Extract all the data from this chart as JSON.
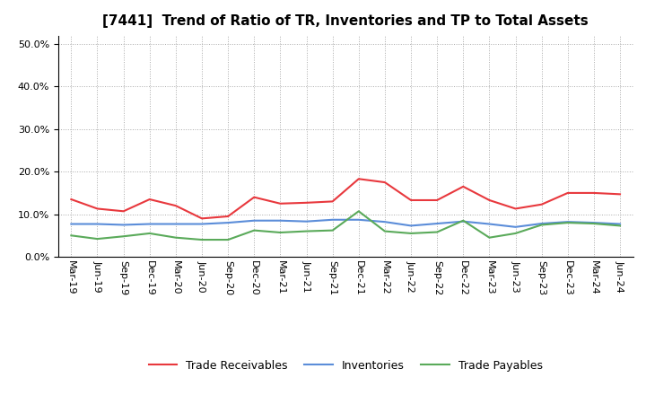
{
  "title": "[7441]  Trend of Ratio of TR, Inventories and TP to Total Assets",
  "x_labels": [
    "Mar-19",
    "Jun-19",
    "Sep-19",
    "Dec-19",
    "Mar-20",
    "Jun-20",
    "Sep-20",
    "Dec-20",
    "Mar-21",
    "Jun-21",
    "Sep-21",
    "Dec-21",
    "Mar-22",
    "Jun-22",
    "Sep-22",
    "Dec-22",
    "Mar-23",
    "Jun-23",
    "Sep-23",
    "Dec-23",
    "Mar-24",
    "Jun-24"
  ],
  "trade_receivables": [
    0.135,
    0.113,
    0.107,
    0.135,
    0.12,
    0.09,
    0.095,
    0.14,
    0.125,
    0.127,
    0.13,
    0.183,
    0.175,
    0.133,
    0.133,
    0.165,
    0.133,
    0.113,
    0.123,
    0.15,
    0.15,
    0.147
  ],
  "inventories": [
    0.077,
    0.077,
    0.075,
    0.077,
    0.077,
    0.077,
    0.08,
    0.085,
    0.085,
    0.083,
    0.087,
    0.087,
    0.082,
    0.073,
    0.078,
    0.083,
    0.077,
    0.07,
    0.078,
    0.082,
    0.08,
    0.077
  ],
  "trade_payables": [
    0.05,
    0.042,
    0.048,
    0.055,
    0.045,
    0.04,
    0.04,
    0.062,
    0.057,
    0.06,
    0.062,
    0.107,
    0.06,
    0.055,
    0.058,
    0.085,
    0.045,
    0.055,
    0.075,
    0.08,
    0.078,
    0.073
  ],
  "tr_color": "#e8383d",
  "inv_color": "#5b8dd9",
  "tp_color": "#5aaa5a",
  "ylim": [
    0.0,
    0.52
  ],
  "yticks": [
    0.0,
    0.1,
    0.2,
    0.3,
    0.4,
    0.5
  ],
  "background_color": "#ffffff",
  "grid_color": "#aaaaaa",
  "title_fontsize": 11,
  "tick_fontsize": 8,
  "legend_fontsize": 9
}
